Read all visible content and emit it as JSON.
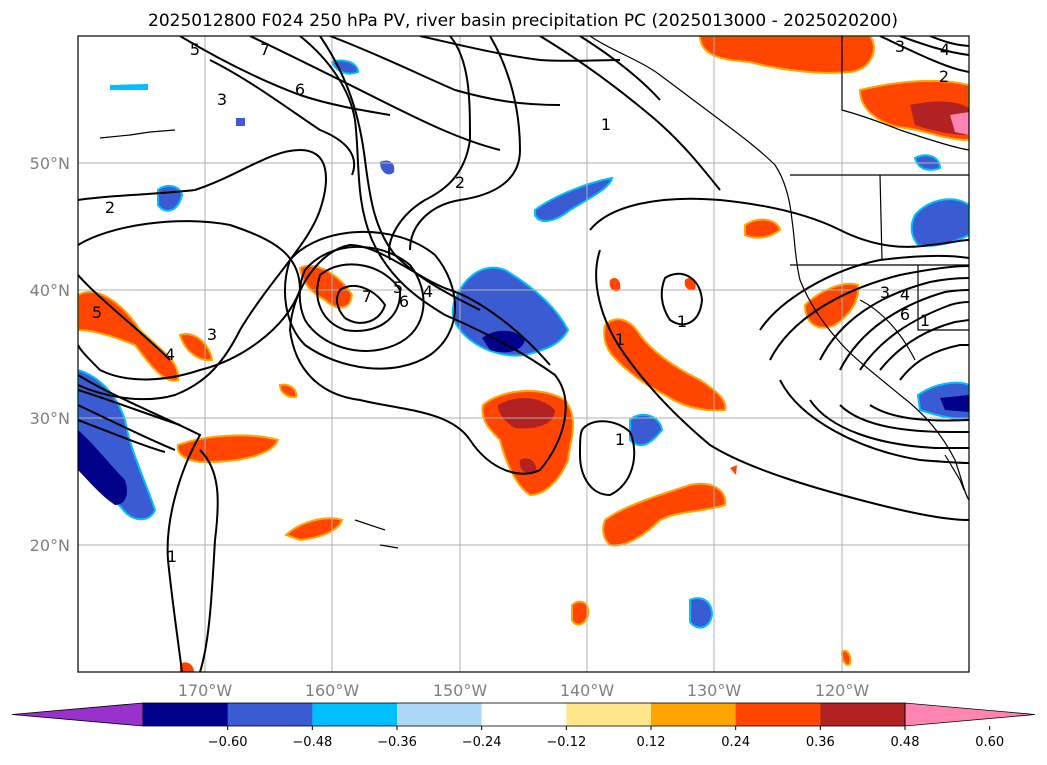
{
  "title": "2025012800 F024 250 hPa PV, river basin precipitation PC (2025013000 - 2025020200)",
  "map": {
    "lat_labels": [
      "50°N",
      "40°N",
      "30°N",
      "20°N"
    ],
    "lon_labels": [
      "170°W",
      "160°W",
      "150°W",
      "140°W",
      "130°W",
      "120°W"
    ],
    "pv_contour_labels": [
      "5",
      "7",
      "6",
      "3",
      "2",
      "1",
      "2",
      "5",
      "4",
      "7",
      "5",
      "6",
      "4",
      "3",
      "1",
      "1",
      "1",
      "1",
      "3",
      "4",
      "6",
      "1",
      "2",
      "3",
      "4"
    ]
  },
  "colorbar": {
    "ticks": [
      "−0.60",
      "−0.48",
      "−0.36",
      "−0.24",
      "−0.12",
      "0.12",
      "0.24",
      "0.36",
      "0.48",
      "0.60"
    ],
    "colors": [
      "#9932cc",
      "#00008b",
      "#3a5bd1",
      "#00bfff",
      "#add8f5",
      "#ffffff",
      "#ffe68a",
      "#ffa500",
      "#ff4500",
      "#b22222",
      "#ff85b0"
    ]
  }
}
